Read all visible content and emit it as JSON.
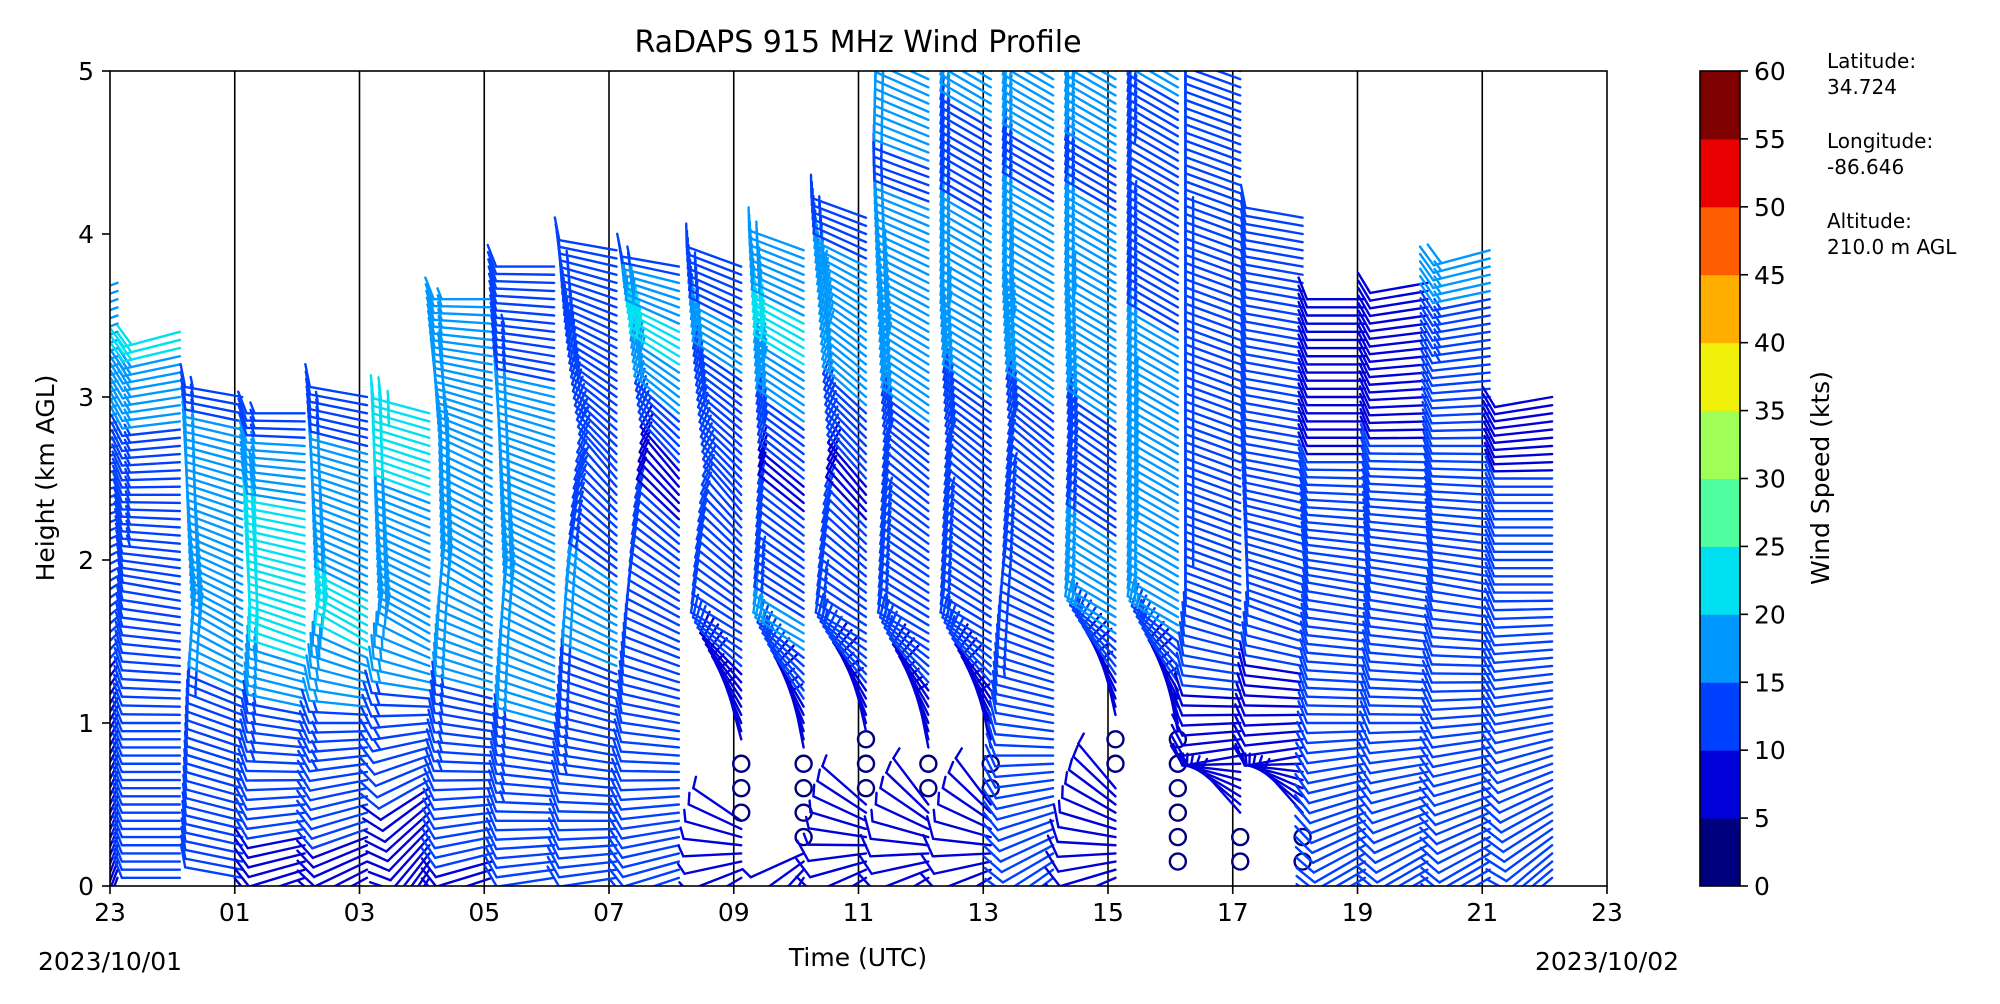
{
  "chart_data": {
    "type": "wind_barb_time_height",
    "title": "RaDAPS 915 MHz Wind Profile",
    "xlabel": "Time (UTC)",
    "ylabel": "Height (km AGL)",
    "x_ticks": [
      "23",
      "01",
      "03",
      "05",
      "07",
      "09",
      "11",
      "13",
      "15",
      "17",
      "19",
      "21",
      "23"
    ],
    "x_tick_hours": [
      0,
      2,
      4,
      6,
      8,
      10,
      12,
      14,
      16,
      18,
      20,
      22,
      24
    ],
    "xlim_hours": [
      0,
      24
    ],
    "start_date_label": "2023/10/01",
    "end_date_label": "2023/10/02",
    "y_ticks": [
      0,
      1,
      2,
      3,
      4,
      5
    ],
    "ylim": [
      0,
      5
    ],
    "vertical_gridlines_every_hours": 2,
    "colorbar": {
      "label": "Wind Speed (kts)",
      "ticks": [
        0,
        5,
        10,
        15,
        20,
        25,
        30,
        35,
        40,
        45,
        50,
        55,
        60
      ],
      "colors": [
        "#00007f",
        "#0000d9",
        "#0040ff",
        "#0098ff",
        "#00e0f0",
        "#50ff9f",
        "#a0ff56",
        "#f0f00a",
        "#ffae00",
        "#ff5e00",
        "#ea0000",
        "#7f0000"
      ]
    },
    "columns": [
      {
        "t": 0.0,
        "top": 3.7,
        "profile": [
          [
            0,
            9,
            200
          ],
          [
            1.2,
            9,
            210
          ],
          [
            1.9,
            12,
            240
          ],
          [
            2.6,
            14,
            260
          ],
          [
            3.1,
            18,
            250
          ],
          [
            3.7,
            20,
            250
          ]
        ]
      },
      {
        "t": 1.0,
        "top": 3.4,
        "profile": [
          [
            0,
            10,
            270
          ],
          [
            1.0,
            10,
            270
          ],
          [
            1.8,
            12,
            280
          ],
          [
            2.7,
            14,
            265
          ],
          [
            3.1,
            18,
            260
          ],
          [
            3.4,
            22,
            255
          ]
        ]
      },
      {
        "t": 2.0,
        "top": 3.0,
        "profile": [
          [
            0,
            10,
            280
          ],
          [
            1.0,
            12,
            290
          ],
          [
            1.5,
            20,
            300
          ],
          [
            2.2,
            18,
            290
          ],
          [
            3.0,
            14,
            280
          ]
        ]
      },
      {
        "t": 3.0,
        "top": 2.9,
        "profile": [
          [
            0,
            8,
            250
          ],
          [
            1.0,
            14,
            280
          ],
          [
            1.5,
            22,
            290
          ],
          [
            2.3,
            20,
            280
          ],
          [
            2.9,
            13,
            270
          ]
        ]
      },
      {
        "t": 4.0,
        "top": 3.0,
        "profile": [
          [
            0,
            8,
            240
          ],
          [
            1.0,
            14,
            270
          ],
          [
            1.5,
            21,
            300
          ],
          [
            2.3,
            18,
            290
          ],
          [
            3.0,
            12,
            280
          ]
        ]
      },
      {
        "t": 5.0,
        "top": 2.9,
        "profile": [
          [
            0,
            6,
            210
          ],
          [
            0.5,
            9,
            230
          ],
          [
            1.5,
            18,
            300
          ],
          [
            2.4,
            20,
            290
          ],
          [
            2.9,
            24,
            285
          ]
        ]
      },
      {
        "t": 6.0,
        "top": 3.6,
        "profile": [
          [
            0,
            9,
            250
          ],
          [
            1.0,
            14,
            280
          ],
          [
            1.8,
            18,
            300
          ],
          [
            2.6,
            20,
            295
          ],
          [
            3.6,
            16,
            270
          ]
        ]
      },
      {
        "t": 7.0,
        "top": 3.8,
        "profile": [
          [
            0,
            10,
            260
          ],
          [
            1.0,
            15,
            285
          ],
          [
            1.7,
            19,
            300
          ],
          [
            2.6,
            18,
            290
          ],
          [
            3.8,
            10,
            270
          ]
        ]
      },
      {
        "t": 8.0,
        "top": 3.9,
        "profile": [
          [
            0,
            10,
            260
          ],
          [
            1.0,
            14,
            285
          ],
          [
            1.7,
            16,
            300
          ],
          [
            2.5,
            12,
            320
          ],
          [
            3.2,
            15,
            300
          ],
          [
            3.9,
            12,
            280
          ]
        ]
      },
      {
        "t": 9.0,
        "top": 3.8,
        "profile": [
          [
            0,
            10,
            250
          ],
          [
            1.0,
            12,
            280
          ],
          [
            1.7,
            12,
            300
          ],
          [
            2.5,
            9,
            320
          ],
          [
            3.3,
            22,
            300
          ],
          [
            3.8,
            14,
            280
          ]
        ]
      },
      {
        "t": 10.0,
        "top": 3.8,
        "profile": [
          [
            0,
            8,
            230
          ],
          [
            0.7,
            3,
            0
          ],
          [
            1.5,
            12,
            300
          ],
          [
            2.3,
            10,
            320
          ],
          [
            3.3,
            16,
            300
          ],
          [
            3.8,
            12,
            290
          ]
        ]
      },
      {
        "t": 11.0,
        "top": 3.9,
        "profile": [
          [
            0,
            6,
            200
          ],
          [
            0.7,
            3,
            0
          ],
          [
            1.5,
            16,
            300
          ],
          [
            2.4,
            9,
            310
          ],
          [
            3.3,
            22,
            300
          ],
          [
            3.9,
            15,
            290
          ]
        ]
      },
      {
        "t": 12.0,
        "top": 4.1,
        "profile": [
          [
            0,
            9,
            230
          ],
          [
            0.8,
            3,
            0
          ],
          [
            1.5,
            14,
            300
          ],
          [
            2.4,
            9,
            320
          ],
          [
            3.4,
            20,
            305
          ],
          [
            4.1,
            12,
            290
          ]
        ]
      },
      {
        "t": 13.0,
        "top": 5.0,
        "profile": [
          [
            0,
            10,
            230
          ],
          [
            0.7,
            3,
            0
          ],
          [
            1.5,
            14,
            300
          ],
          [
            2.5,
            12,
            310
          ],
          [
            3.4,
            20,
            300
          ],
          [
            4.3,
            14,
            290
          ],
          [
            5.0,
            20,
            295
          ]
        ]
      },
      {
        "t": 14.0,
        "top": 5.0,
        "profile": [
          [
            0,
            10,
            230
          ],
          [
            0.7,
            3,
            0
          ],
          [
            1.5,
            14,
            300
          ],
          [
            2.5,
            12,
            310
          ],
          [
            3.4,
            18,
            300
          ],
          [
            4.3,
            14,
            300
          ],
          [
            5.0,
            16,
            300
          ]
        ]
      },
      {
        "t": 15.0,
        "top": 5.0,
        "profile": [
          [
            0,
            10,
            230
          ],
          [
            1.0,
            12,
            280
          ],
          [
            1.8,
            14,
            300
          ],
          [
            2.6,
            12,
            310
          ],
          [
            3.5,
            20,
            300
          ],
          [
            4.3,
            14,
            300
          ],
          [
            5.0,
            18,
            300
          ]
        ]
      },
      {
        "t": 16.0,
        "top": 5.0,
        "profile": [
          [
            0,
            10,
            240
          ],
          [
            0.9,
            3,
            0
          ],
          [
            1.6,
            16,
            300
          ],
          [
            2.6,
            14,
            305
          ],
          [
            3.5,
            18,
            300
          ],
          [
            4.3,
            14,
            300
          ],
          [
            5.0,
            20,
            300
          ]
        ]
      },
      {
        "t": 17.0,
        "top": 5.0,
        "profile": [
          [
            0,
            4,
            180
          ],
          [
            0.8,
            3,
            0
          ],
          [
            1.6,
            16,
            300
          ],
          [
            2.6,
            20,
            300
          ],
          [
            3.5,
            14,
            300
          ],
          [
            4.3,
            12,
            300
          ],
          [
            5.0,
            16,
            300
          ]
        ]
      },
      {
        "t": 18.0,
        "top": 5.0,
        "profile": [
          [
            0.2,
            3,
            0
          ],
          [
            0.8,
            8,
            260
          ],
          [
            1.6,
            12,
            290
          ],
          [
            2.5,
            14,
            290
          ],
          [
            3.4,
            14,
            290
          ],
          [
            4.3,
            12,
            290
          ],
          [
            5.0,
            12,
            290
          ]
        ]
      },
      {
        "t": 19.0,
        "top": 4.1,
        "profile": [
          [
            0.2,
            3,
            0
          ],
          [
            0.8,
            8,
            260
          ],
          [
            1.6,
            11,
            290
          ],
          [
            2.6,
            12,
            280
          ],
          [
            3.4,
            11,
            280
          ],
          [
            4.1,
            10,
            280
          ]
        ]
      },
      {
        "t": 20.0,
        "top": 3.6,
        "profile": [
          [
            0.2,
            10,
            240
          ],
          [
            1.0,
            10,
            270
          ],
          [
            1.8,
            10,
            280
          ],
          [
            2.6,
            10,
            270
          ],
          [
            3.6,
            9,
            270
          ]
        ]
      },
      {
        "t": 21.0,
        "top": 3.7,
        "profile": [
          [
            0.2,
            10,
            240
          ],
          [
            1.0,
            11,
            270
          ],
          [
            1.8,
            11,
            280
          ],
          [
            2.7,
            10,
            270
          ],
          [
            3.7,
            9,
            260
          ]
        ]
      },
      {
        "t": 22.0,
        "top": 3.9,
        "profile": [
          [
            0.2,
            10,
            240
          ],
          [
            1.0,
            12,
            265
          ],
          [
            1.8,
            12,
            280
          ],
          [
            2.7,
            10,
            270
          ],
          [
            3.5,
            14,
            260
          ],
          [
            3.9,
            18,
            255
          ]
        ]
      },
      {
        "t": 23.0,
        "top": 3.0,
        "profile": [
          [
            0.2,
            10,
            230
          ],
          [
            1.0,
            12,
            260
          ],
          [
            1.8,
            11,
            270
          ],
          [
            2.5,
            10,
            270
          ],
          [
            3.0,
            8,
            260
          ]
        ]
      }
    ]
  },
  "location": {
    "latitude_label": "Latitude:",
    "latitude_value": "34.724",
    "longitude_label": "Longitude:",
    "longitude_value": "-86.646",
    "altitude_label": "Altitude:",
    "altitude_value": "210.0 m AGL"
  }
}
